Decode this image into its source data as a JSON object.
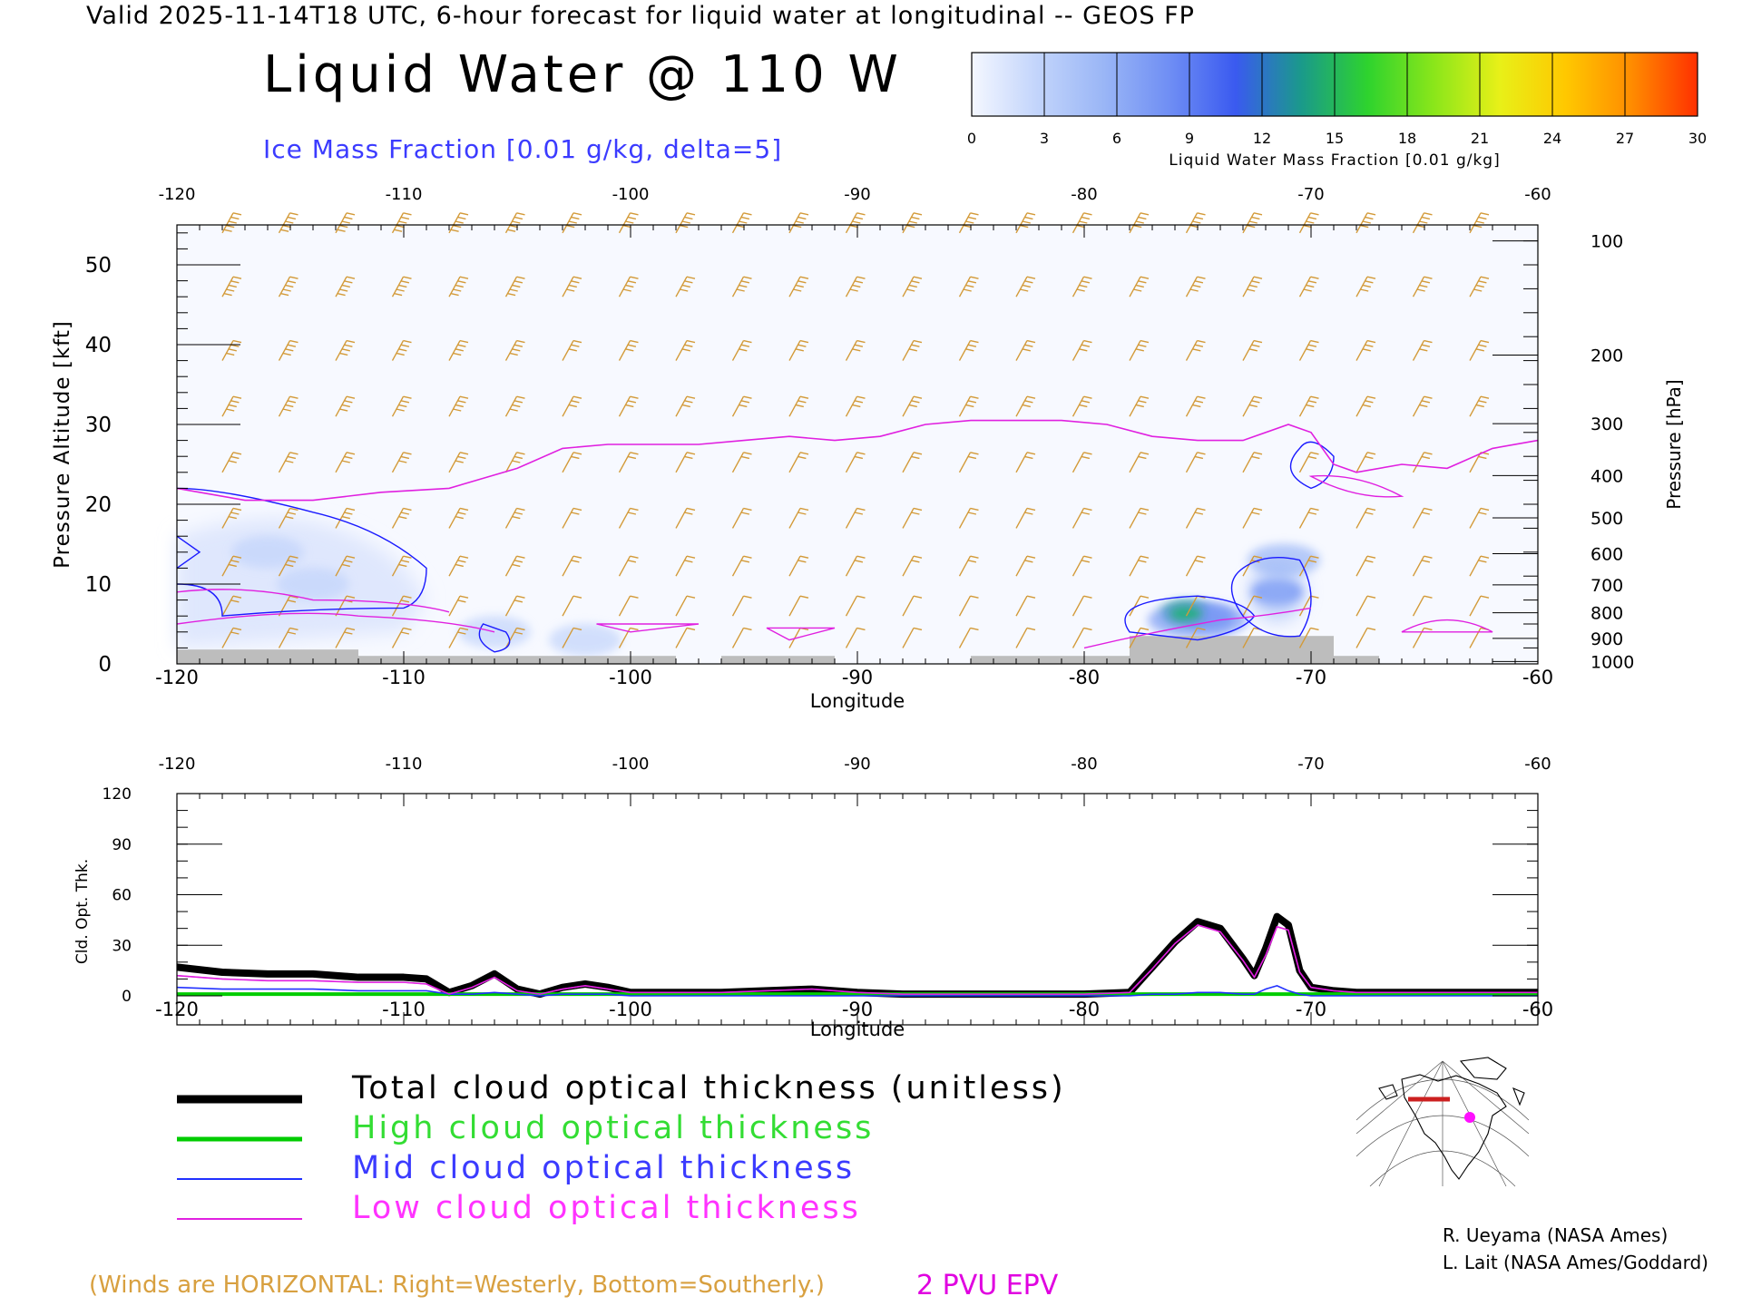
{
  "header": {
    "valid_line": "Valid 2025-11-14T18 UTC, 6-hour forecast for liquid water at longitudinal -- GEOS FP",
    "title": "Liquid Water @ 110 W",
    "subtitle": "Ice Mass Fraction [0.01 g/kg, delta=5]"
  },
  "colorbar": {
    "label": "Liquid Water Mass Fraction [0.01 g/kg]",
    "ticks": [
      "0",
      "3",
      "6",
      "9",
      "12",
      "15",
      "18",
      "21",
      "24",
      "27",
      "30"
    ],
    "colors": [
      "#f4f7ff",
      "#c2d4fb",
      "#9ab6f6",
      "#6f8ef4",
      "#3a5af0",
      "#1a9a8a",
      "#2ed32e",
      "#8ae61a",
      "#e8f018",
      "#ffc800",
      "#ff8c00",
      "#ff3000"
    ]
  },
  "chart_data": [
    {
      "type": "heatmap",
      "name": "cross-section",
      "xlabel": "Longitude",
      "ylabel": "Pressure Altitude [kft]",
      "y2label": "Pressure [hPa]",
      "xlim": [
        -120,
        -60
      ],
      "ylim": [
        0,
        55
      ],
      "x_ticks": [
        "-120",
        "-110",
        "-100",
        "-90",
        "-80",
        "-70",
        "-60"
      ],
      "x_tick_values": [
        -120,
        -110,
        -100,
        -90,
        -80,
        -70,
        -60
      ],
      "y_ticks": [
        "0",
        "10",
        "20",
        "30",
        "40",
        "50"
      ],
      "y_tick_values": [
        0,
        10,
        20,
        30,
        40,
        50
      ],
      "pressure_ticks": [
        {
          "label": "100",
          "alt": 53
        },
        {
          "label": "200",
          "alt": 38.7
        },
        {
          "label": "300",
          "alt": 30.1
        },
        {
          "label": "400",
          "alt": 23.6
        },
        {
          "label": "500",
          "alt": 18.3
        },
        {
          "label": "600",
          "alt": 13.8
        },
        {
          "label": "700",
          "alt": 9.9
        },
        {
          "label": "800",
          "alt": 6.4
        },
        {
          "label": "900",
          "alt": 3.2
        },
        {
          "label": "1000",
          "alt": 0.3
        }
      ],
      "epv_2pvu_line": {
        "lon": [
          -120,
          -117,
          -114,
          -111,
          -108,
          -105,
          -103,
          -101,
          -99,
          -97,
          -95,
          -93,
          -91,
          -89,
          -87,
          -85,
          -83,
          -81,
          -79,
          -77,
          -75,
          -73,
          -71,
          -70,
          -69,
          -68,
          -66,
          -64,
          -62,
          -60
        ],
        "alt": [
          22,
          20.5,
          20.5,
          21.5,
          22,
          24.5,
          27,
          27.5,
          27.5,
          27.5,
          28,
          28.5,
          28,
          28.5,
          30,
          30.5,
          30.5,
          30.5,
          30,
          28.5,
          28,
          28,
          30,
          29,
          25,
          24,
          25,
          24.5,
          27,
          28
        ]
      },
      "liquid_water_blobs": [
        {
          "lon": -75.5,
          "alt": 6.3,
          "value": 14
        },
        {
          "lon": -74.5,
          "alt": 5.8,
          "value": 10
        },
        {
          "lon": -71.5,
          "alt": 9,
          "value": 8
        },
        {
          "lon": -71.2,
          "alt": 13,
          "value": 6
        },
        {
          "lon": -114,
          "alt": 10,
          "value": 3
        },
        {
          "lon": -116,
          "alt": 14,
          "value": 2
        },
        {
          "lon": -106,
          "alt": 4,
          "value": 3
        },
        {
          "lon": -102,
          "alt": 3,
          "value": 2
        }
      ],
      "surface_terrain": [
        {
          "lon_start": -120,
          "lon_end": -112,
          "alt": 1.8
        },
        {
          "lon_start": -112,
          "lon_end": -98,
          "alt": 1.0
        },
        {
          "lon_start": -96,
          "lon_end": -91,
          "alt": 1.0
        },
        {
          "lon_start": -85,
          "lon_end": -78,
          "alt": 1.0
        },
        {
          "lon_start": -78,
          "lon_end": -69,
          "alt": 3.5
        },
        {
          "lon_start": -69,
          "lon_end": -67,
          "alt": 1.0
        }
      ]
    },
    {
      "type": "line",
      "name": "cloud-optical-thickness",
      "xlabel": "Longitude",
      "ylabel": "Cld. Opt. Thk.",
      "xlim": [
        -120,
        -60
      ],
      "ylim": [
        0,
        120
      ],
      "x_ticks": [
        "-120",
        "-110",
        "-100",
        "-90",
        "-80",
        "-70",
        "-60"
      ],
      "x_tick_values": [
        -120,
        -110,
        -100,
        -90,
        -80,
        -70,
        -60
      ],
      "y_ticks": [
        "0",
        "30",
        "60",
        "90",
        "120"
      ],
      "y_tick_values": [
        0,
        30,
        60,
        90,
        120
      ],
      "x": [
        -120,
        -118,
        -116,
        -114,
        -112,
        -110,
        -109,
        -108,
        -107,
        -106,
        -105,
        -104,
        -103,
        -102,
        -101,
        -100,
        -98,
        -96,
        -94,
        -92,
        -90,
        -88,
        -86,
        -84,
        -82,
        -80,
        -78,
        -77,
        -76,
        -75,
        -74,
        -73,
        -72.5,
        -72,
        -71.5,
        -71,
        -70.5,
        -70,
        -69,
        -68,
        -66,
        -64,
        -62,
        -60
      ],
      "series": [
        {
          "name": "Total cloud optical thickness (unitless)",
          "color": "#000000",
          "values": [
            17,
            14,
            13,
            13,
            11,
            11,
            10,
            2,
            6,
            13,
            4,
            1,
            5,
            7,
            5,
            2,
            2,
            2,
            3,
            4,
            2,
            1,
            1,
            1,
            1,
            1,
            2,
            17,
            32,
            44,
            40,
            22,
            12,
            28,
            47,
            42,
            15,
            5,
            3,
            2,
            2,
            2,
            2,
            2
          ]
        },
        {
          "name": "High cloud optical thickness",
          "color": "#00cc00",
          "values": [
            1,
            1,
            1,
            1,
            1,
            1,
            1,
            1,
            1,
            1,
            1,
            1,
            1,
            1,
            1,
            1,
            1,
            1,
            1,
            1,
            1,
            1,
            1,
            1,
            1,
            1,
            1,
            1,
            1,
            1,
            1,
            1,
            1,
            1,
            1,
            1,
            1,
            1,
            1,
            1,
            1,
            1,
            1,
            1
          ]
        },
        {
          "name": "Mid cloud optical thickness",
          "color": "#2030ff",
          "values": [
            5,
            4,
            4,
            4,
            3,
            3,
            3,
            1,
            1,
            2,
            1,
            0,
            1,
            1,
            1,
            0,
            0,
            0,
            0,
            0,
            0,
            0,
            0,
            0,
            0,
            0,
            0,
            1,
            1,
            2,
            2,
            1,
            1,
            4,
            6,
            3,
            1,
            0,
            0,
            0,
            0,
            0,
            0,
            0
          ]
        },
        {
          "name": "Low cloud optical thickness",
          "color": "#e020e0",
          "values": [
            12,
            10,
            9,
            9,
            8,
            8,
            7,
            1,
            5,
            11,
            3,
            1,
            4,
            6,
            4,
            2,
            2,
            2,
            3,
            4,
            2,
            1,
            1,
            1,
            1,
            1,
            2,
            16,
            31,
            42,
            38,
            21,
            11,
            24,
            41,
            39,
            14,
            5,
            3,
            2,
            2,
            2,
            2,
            2
          ]
        }
      ]
    }
  ],
  "legend": {
    "total": "Total cloud optical thickness (unitless)",
    "high": "High cloud optical thickness",
    "mid": "Mid cloud optical thickness",
    "low": "Low cloud optical thickness",
    "colors": {
      "total": "#000000",
      "high": "#00cc00",
      "mid": "#2030ff",
      "low": "#e020e0"
    }
  },
  "footer": {
    "author1": "R. Ueyama (NASA Ames)",
    "author2": "L. Lait (NASA Ames/Goddard)",
    "winds_note": "(Winds are HORIZONTAL: Right=Westerly, Bottom=Southerly.)",
    "pvu_label": "2 PVU EPV"
  }
}
